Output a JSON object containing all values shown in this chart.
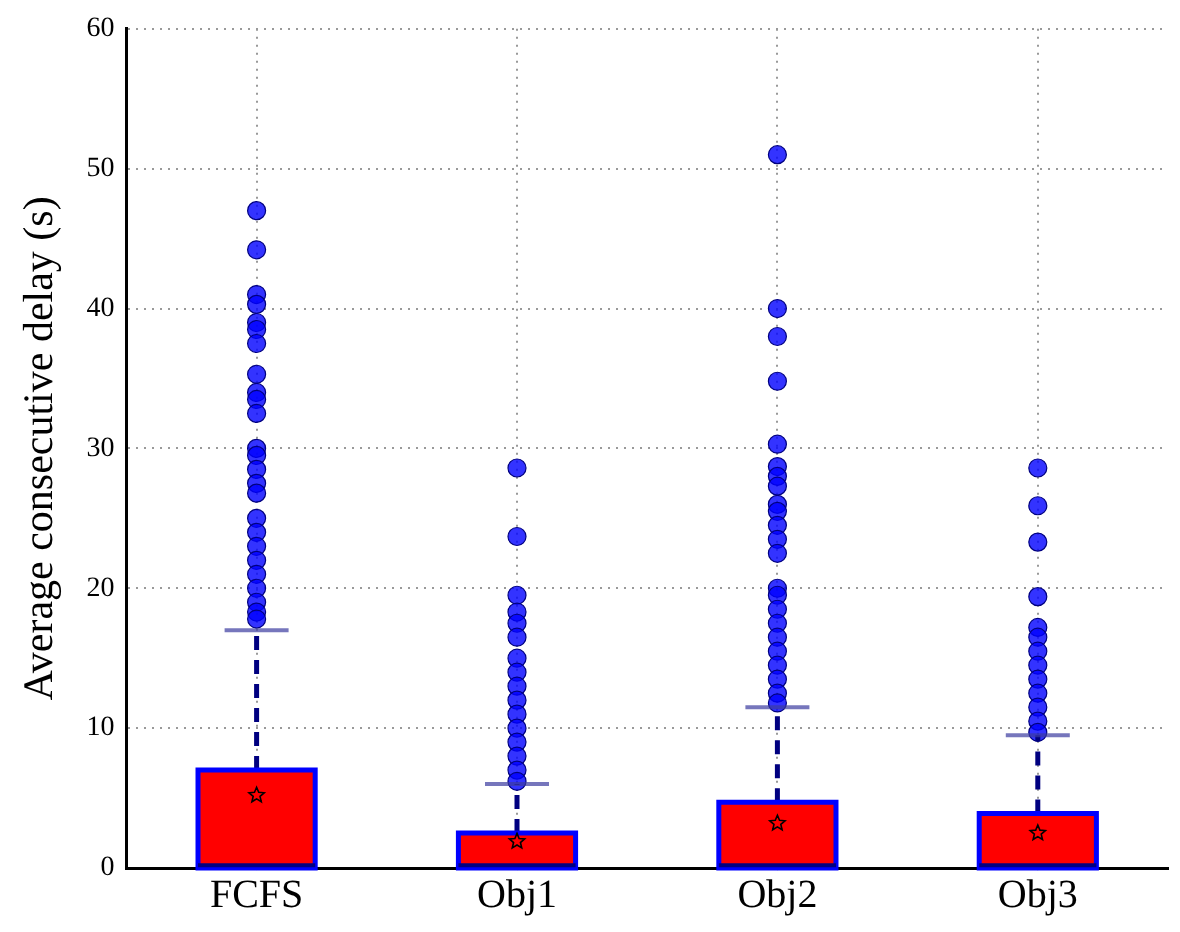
{
  "chart_data": {
    "type": "box",
    "ylabel": "Average consecutive delay (s)",
    "categories": [
      "FCFS",
      "Obj1",
      "Obj2",
      "Obj3"
    ],
    "color": "#ff0000",
    "boxes": [
      {
        "low": 0,
        "q1": 0,
        "median": 0.2,
        "q3": 7.0,
        "high": 17.0,
        "mean": 5.2,
        "outliers": [
          47,
          44.2,
          41,
          40.3,
          39,
          38.5,
          37.5,
          35.3,
          34,
          33.5,
          32.5,
          30,
          29.5,
          28.5,
          27.5,
          26.8,
          25,
          24,
          23,
          22,
          21,
          20,
          19,
          18.3,
          17.8
        ]
      },
      {
        "low": 0,
        "q1": 0,
        "median": 0.2,
        "q3": 2.5,
        "high": 6.0,
        "mean": 1.9,
        "outliers": [
          28.6,
          23.7,
          19.5,
          18.3,
          17.5,
          16.5,
          15,
          14,
          13,
          12,
          11,
          10,
          9,
          8,
          7,
          6.2
        ]
      },
      {
        "low": 0,
        "q1": 0,
        "median": 0.2,
        "q3": 4.7,
        "high": 11.5,
        "mean": 3.2,
        "outliers": [
          51,
          40,
          38,
          34.8,
          30.3,
          28.7,
          28,
          27.3,
          26,
          25.5,
          24.5,
          23.5,
          22.5,
          20,
          19.5,
          18.5,
          17.5,
          16.5,
          15.5,
          14.5,
          13.5,
          12.5,
          11.8
        ]
      },
      {
        "low": 0,
        "q1": 0,
        "median": 0.2,
        "q3": 3.9,
        "high": 9.5,
        "mean": 2.5,
        "outliers": [
          28.6,
          25.9,
          23.3,
          19.4,
          17.2,
          16.5,
          15.5,
          14.5,
          13.5,
          12.5,
          11.5,
          10.5,
          9.7
        ]
      }
    ],
    "ylim": [
      0,
      60
    ],
    "yticks": [
      0,
      10,
      20,
      30,
      40,
      50,
      60
    ],
    "grid": true
  }
}
